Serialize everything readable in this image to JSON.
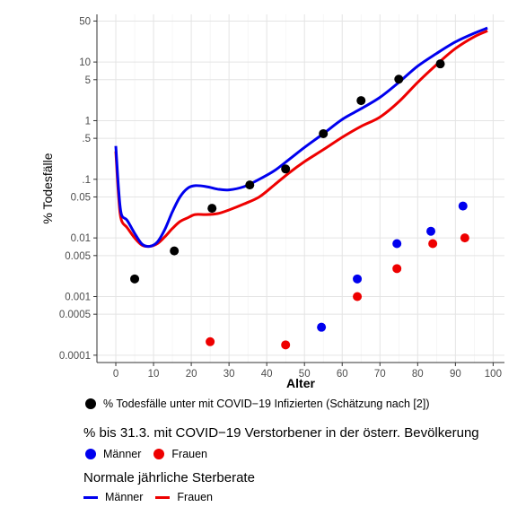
{
  "chart_data": {
    "type": "scatter",
    "xlabel": "Alter",
    "ylabel": "% Todesfälle",
    "xlim": [
      -5,
      103
    ],
    "ylim": [
      7.5e-05,
      65
    ],
    "yscale": "log",
    "grid": true,
    "x_ticks": [
      0,
      10,
      20,
      30,
      40,
      50,
      60,
      70,
      80,
      90,
      100
    ],
    "y_ticks": [
      {
        "value": 0.0001,
        "label": "0.0001"
      },
      {
        "value": 0.0005,
        "label": "0.0005"
      },
      {
        "value": 0.001,
        "label": "0.001"
      },
      {
        "value": 0.005,
        "label": "0.005"
      },
      {
        "value": 0.01,
        "label": "0.01"
      },
      {
        "value": 0.05,
        "label": "0.05"
      },
      {
        "value": 0.1,
        "label": ".1"
      },
      {
        "value": 0.5,
        "label": ".5"
      },
      {
        "value": 1,
        "label": "1"
      },
      {
        "value": 5,
        "label": "5"
      },
      {
        "value": 10,
        "label": "10"
      },
      {
        "value": 50,
        "label": "50"
      }
    ],
    "colors": {
      "black": "#000000",
      "blue": "#0000ee",
      "red": "#ee0000"
    },
    "ifr_points": [
      {
        "x": 5,
        "y": 0.002
      },
      {
        "x": 15.5,
        "y": 0.006
      },
      {
        "x": 25.5,
        "y": 0.032
      },
      {
        "x": 35.5,
        "y": 0.08
      },
      {
        "x": 45,
        "y": 0.15
      },
      {
        "x": 55,
        "y": 0.6
      },
      {
        "x": 65,
        "y": 2.2
      },
      {
        "x": 75,
        "y": 5.1
      },
      {
        "x": 86,
        "y": 9.3
      }
    ],
    "covid_men": [
      {
        "x": 54.5,
        "y": 0.0003
      },
      {
        "x": 64,
        "y": 0.002
      },
      {
        "x": 74.5,
        "y": 0.008
      },
      {
        "x": 83.5,
        "y": 0.013
      },
      {
        "x": 92,
        "y": 0.035
      }
    ],
    "covid_women": [
      {
        "x": 25,
        "y": 0.00017
      },
      {
        "x": 45,
        "y": 0.00015
      },
      {
        "x": 64,
        "y": 0.001
      },
      {
        "x": 74.5,
        "y": 0.003
      },
      {
        "x": 84,
        "y": 0.008
      },
      {
        "x": 92.5,
        "y": 0.01
      }
    ],
    "normal_men": [
      {
        "x": 0,
        "y": 0.37
      },
      {
        "x": 0.8,
        "y": 0.06
      },
      {
        "x": 1.5,
        "y": 0.025
      },
      {
        "x": 3,
        "y": 0.02
      },
      {
        "x": 5,
        "y": 0.012
      },
      {
        "x": 7,
        "y": 0.0078
      },
      {
        "x": 9,
        "y": 0.0072
      },
      {
        "x": 11,
        "y": 0.0085
      },
      {
        "x": 13,
        "y": 0.014
      },
      {
        "x": 15,
        "y": 0.028
      },
      {
        "x": 17,
        "y": 0.05
      },
      {
        "x": 19,
        "y": 0.07
      },
      {
        "x": 21,
        "y": 0.078
      },
      {
        "x": 24,
        "y": 0.075
      },
      {
        "x": 27,
        "y": 0.068
      },
      {
        "x": 30,
        "y": 0.066
      },
      {
        "x": 34,
        "y": 0.075
      },
      {
        "x": 38,
        "y": 0.1
      },
      {
        "x": 42,
        "y": 0.14
      },
      {
        "x": 46,
        "y": 0.22
      },
      {
        "x": 50,
        "y": 0.35
      },
      {
        "x": 55,
        "y": 0.6
      },
      {
        "x": 60,
        "y": 1.05
      },
      {
        "x": 65,
        "y": 1.6
      },
      {
        "x": 70,
        "y": 2.5
      },
      {
        "x": 75,
        "y": 4.5
      },
      {
        "x": 80,
        "y": 8.5
      },
      {
        "x": 85,
        "y": 14
      },
      {
        "x": 90,
        "y": 22
      },
      {
        "x": 95,
        "y": 31
      },
      {
        "x": 98.5,
        "y": 38
      }
    ],
    "normal_women": [
      {
        "x": 0,
        "y": 0.3
      },
      {
        "x": 0.8,
        "y": 0.045
      },
      {
        "x": 1.5,
        "y": 0.02
      },
      {
        "x": 3,
        "y": 0.015
      },
      {
        "x": 5,
        "y": 0.01
      },
      {
        "x": 7,
        "y": 0.0075
      },
      {
        "x": 9,
        "y": 0.0072
      },
      {
        "x": 11,
        "y": 0.008
      },
      {
        "x": 13,
        "y": 0.0105
      },
      {
        "x": 15,
        "y": 0.0145
      },
      {
        "x": 17,
        "y": 0.019
      },
      {
        "x": 19,
        "y": 0.022
      },
      {
        "x": 21,
        "y": 0.025
      },
      {
        "x": 24,
        "y": 0.025
      },
      {
        "x": 27,
        "y": 0.026
      },
      {
        "x": 30,
        "y": 0.03
      },
      {
        "x": 34,
        "y": 0.038
      },
      {
        "x": 38,
        "y": 0.05
      },
      {
        "x": 42,
        "y": 0.08
      },
      {
        "x": 46,
        "y": 0.13
      },
      {
        "x": 50,
        "y": 0.2
      },
      {
        "x": 55,
        "y": 0.32
      },
      {
        "x": 60,
        "y": 0.52
      },
      {
        "x": 65,
        "y": 0.8
      },
      {
        "x": 70,
        "y": 1.15
      },
      {
        "x": 75,
        "y": 2.1
      },
      {
        "x": 80,
        "y": 4.5
      },
      {
        "x": 85,
        "y": 9
      },
      {
        "x": 90,
        "y": 17
      },
      {
        "x": 95,
        "y": 27
      },
      {
        "x": 98.5,
        "y": 34
      }
    ]
  },
  "legend": {
    "ifr_label": "% Todesfälle unter mit COVID−19 Infizierten (Schätzung nach [2])",
    "covid_title": "% bis 31.3. mit COVID−19 Verstorbener in der österr. Bevölkerung",
    "covid_men_label": "Männer",
    "covid_women_label": "Frauen",
    "normal_title": "Normale jährliche Sterberate",
    "normal_men_label": "Männer",
    "normal_women_label": "Frauen"
  }
}
